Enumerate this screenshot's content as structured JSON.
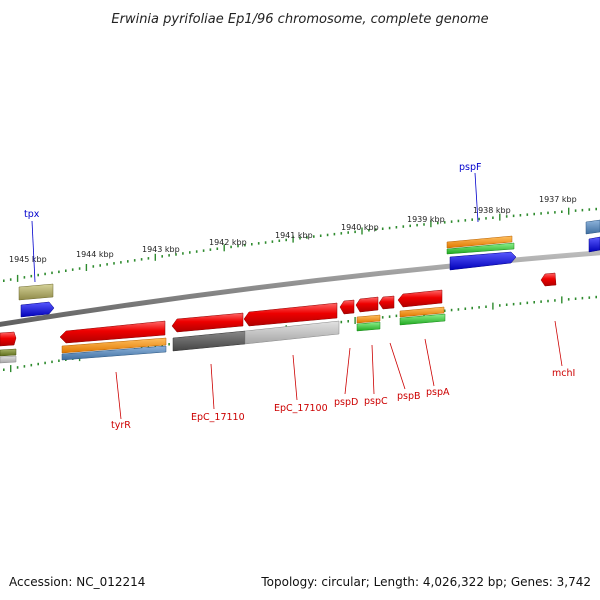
{
  "title": "Erwinia pyrifoliae Ep1/96 chromosome, complete genome",
  "footer": {
    "accession": "Accession: NC_012214",
    "topology": "Topology: circular; Length: 4,026,322 bp; Genes: 3,742"
  },
  "colors": {
    "backbone": "#888888",
    "ticks": "#2e8b2e",
    "gene_label_default": "#cc0000",
    "gene_label_highlight": "#0000cc"
  },
  "scale_labels": [
    "1945 kbp",
    "1944 kbp",
    "1943 kbp",
    "1942 kbp",
    "1941 kbp",
    "1940 kbp",
    "1939 kbp",
    "1938 kbp",
    "1937 kbp"
  ],
  "gene_labels": [
    {
      "name": "tpx",
      "color": "blue"
    },
    {
      "name": "pspF",
      "color": "blue"
    },
    {
      "name": "tyrR",
      "color": "red"
    },
    {
      "name": "EpC_17110",
      "color": "red"
    },
    {
      "name": "EpC_17100",
      "color": "red"
    },
    {
      "name": "pspD",
      "color": "red"
    },
    {
      "name": "pspC",
      "color": "red"
    },
    {
      "name": "pspB",
      "color": "red"
    },
    {
      "name": "pspA",
      "color": "red"
    },
    {
      "name": "mchI",
      "color": "red"
    }
  ],
  "feature_tracks": [
    "gene",
    "CDS",
    "mRNA",
    "misc"
  ]
}
